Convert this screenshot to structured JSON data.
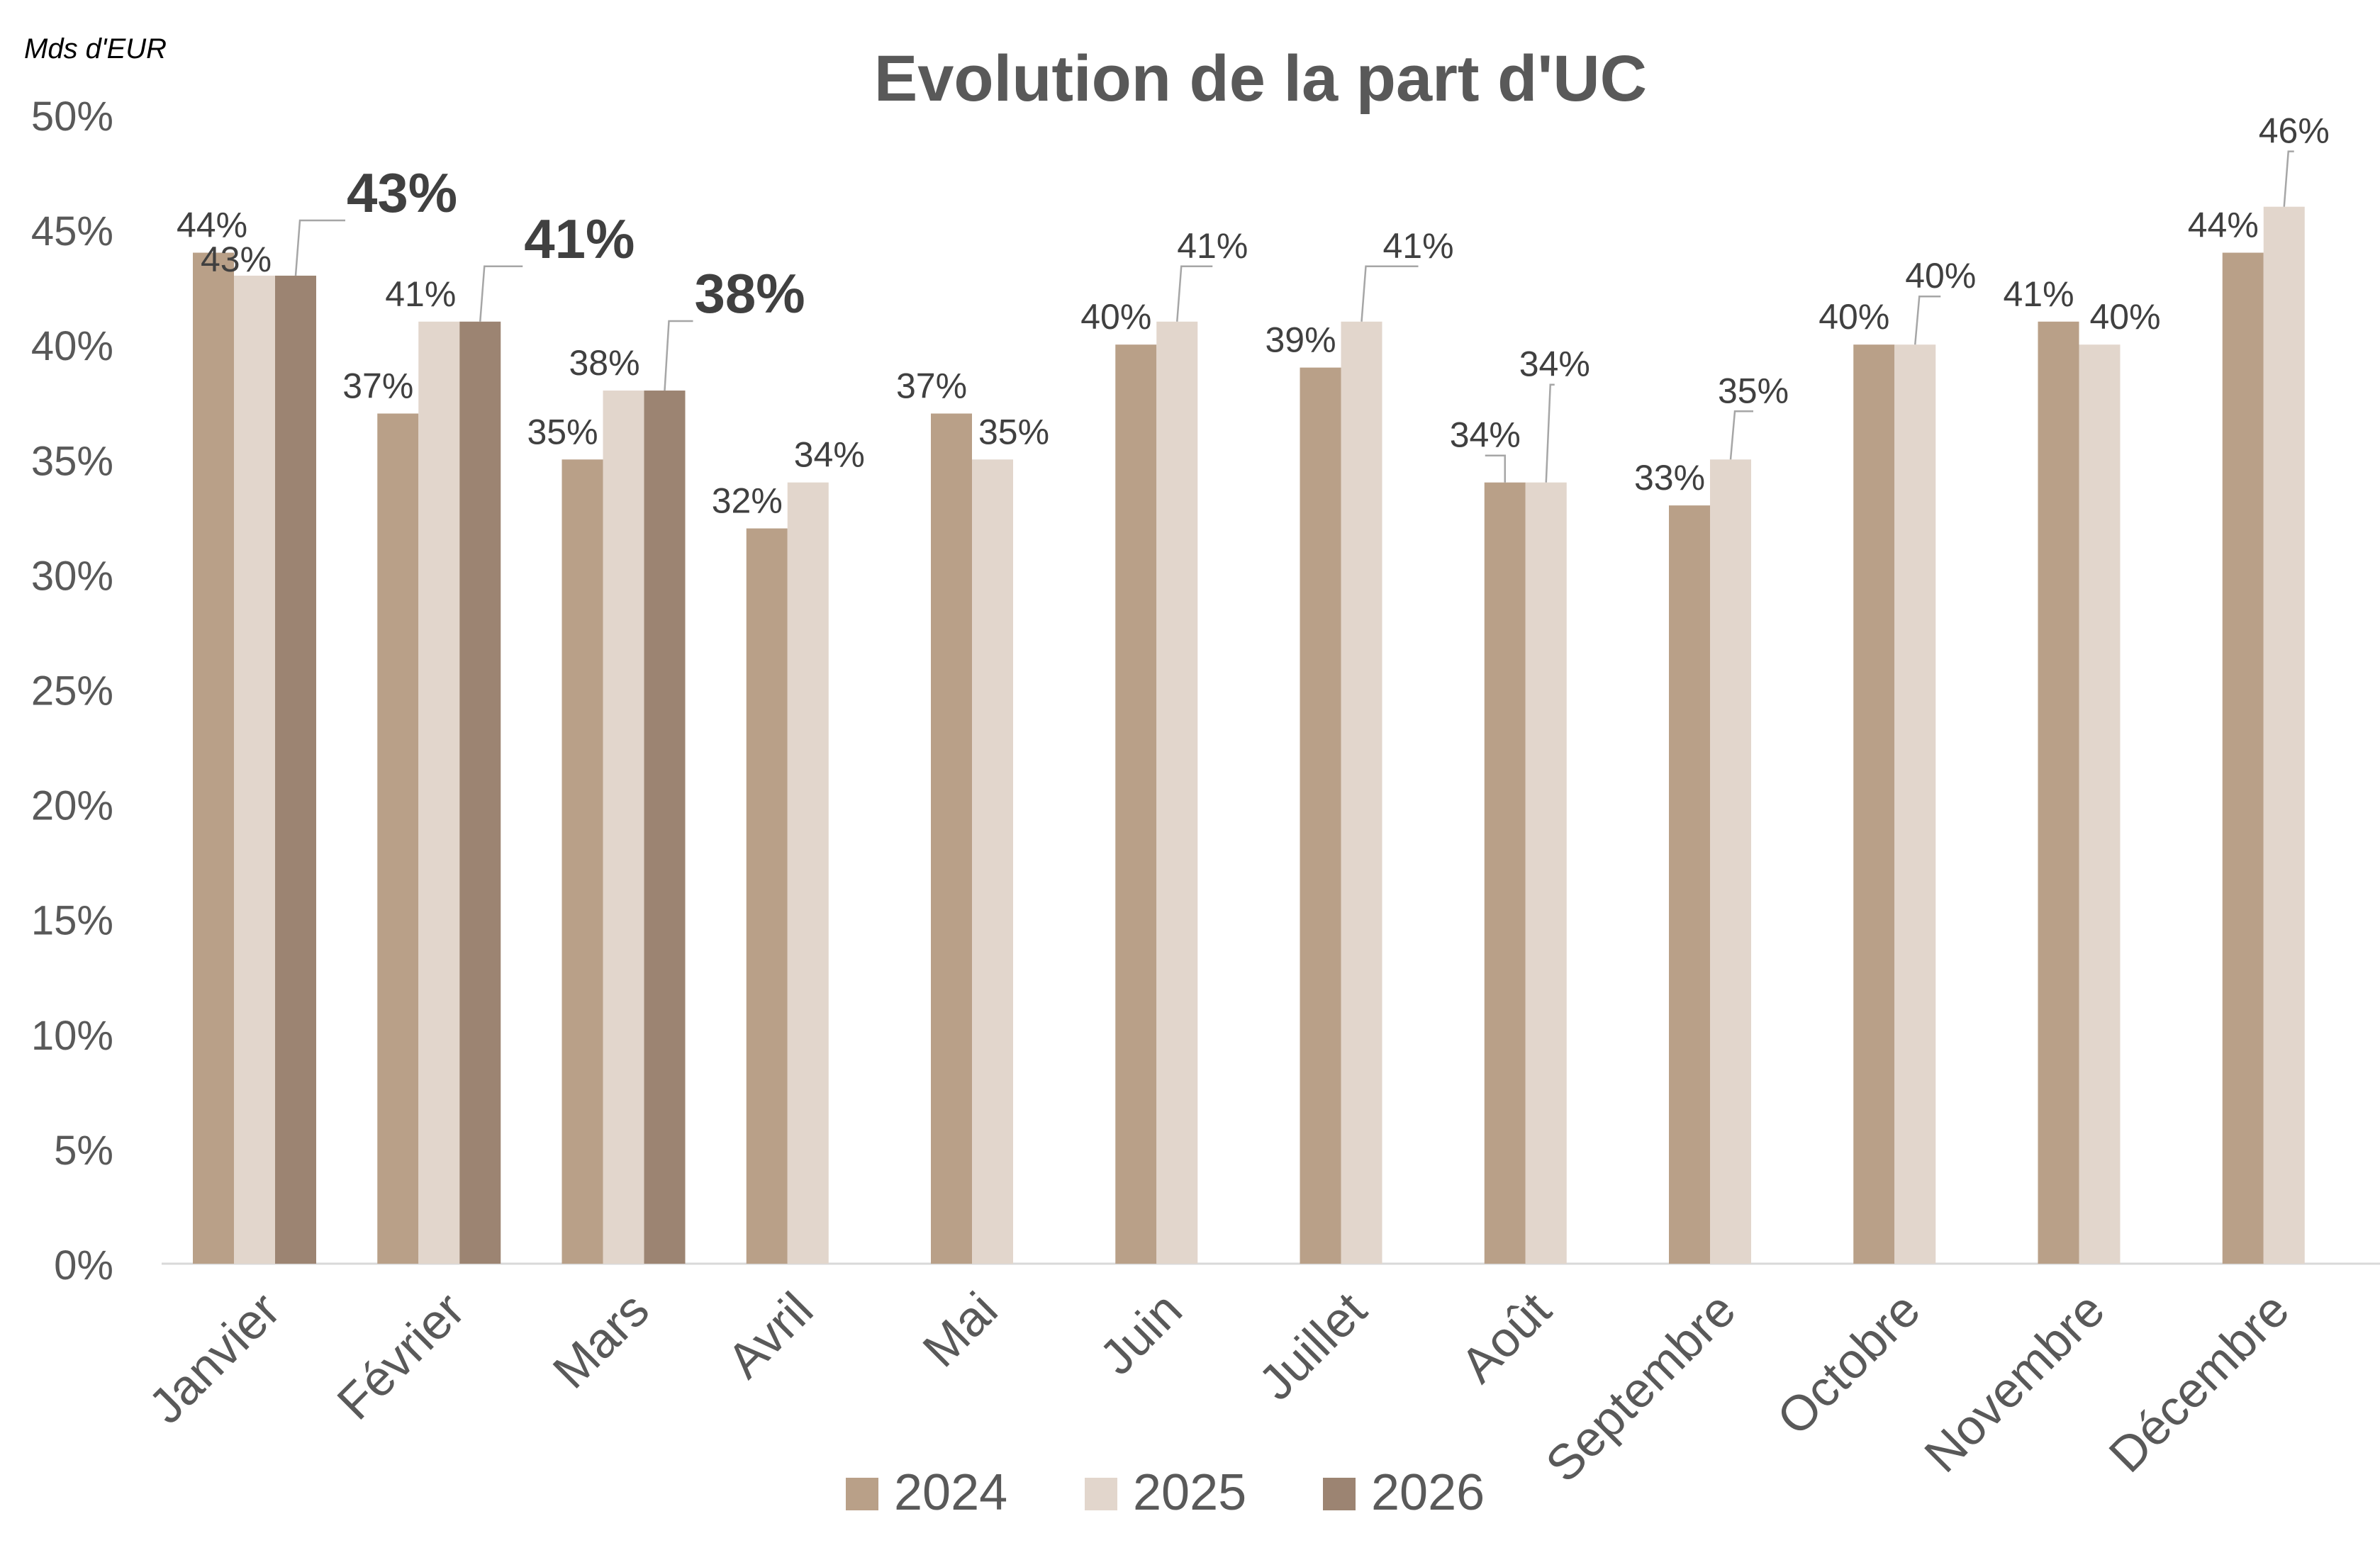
{
  "chart_data": {
    "type": "bar",
    "title": "Evolution de la part d'UC",
    "unit_label": "Mds d'EUR",
    "ylim": [
      0,
      50
    ],
    "yticks": [
      0,
      5,
      10,
      15,
      20,
      25,
      30,
      35,
      40,
      45,
      50
    ],
    "ytick_labels": [
      "0%",
      "5%",
      "10%",
      "15%",
      "20%",
      "25%",
      "30%",
      "35%",
      "40%",
      "45%",
      "50%"
    ],
    "grid": false,
    "legend_position": "bottom",
    "categories": [
      "Janvier",
      "Février",
      "Mars",
      "Avril",
      "Mai",
      "Juin",
      "Juillet",
      "Août",
      "Septembre",
      "Octobre",
      "Novembre",
      "Décembre"
    ],
    "series": [
      {
        "name": "2024",
        "color": "#b9a088",
        "values": [
          44,
          37,
          35,
          32,
          37,
          40,
          39,
          34,
          33,
          40,
          41,
          44
        ],
        "labels": [
          "44%",
          "37%",
          "35%",
          "32%",
          "37%",
          "40%",
          "39%",
          "34%",
          "33%",
          "40%",
          "41%",
          "44%"
        ]
      },
      {
        "name": "2025",
        "color": "#e2d6cc",
        "values": [
          43,
          41,
          38,
          34,
          35,
          41,
          41,
          34,
          35,
          40,
          40,
          46
        ],
        "labels": [
          "43%",
          "41%",
          "38%",
          "34%",
          "35%",
          "41%",
          "41%",
          "34%",
          "35%",
          "40%",
          "40%",
          "46%"
        ]
      },
      {
        "name": "2026",
        "color": "#9c8472",
        "values": [
          43,
          41,
          38,
          null,
          null,
          null,
          null,
          null,
          null,
          null,
          null,
          null
        ],
        "labels": [
          "43%",
          "41%",
          "38%",
          null,
          null,
          null,
          null,
          null,
          null,
          null,
          null,
          null
        ]
      }
    ]
  }
}
